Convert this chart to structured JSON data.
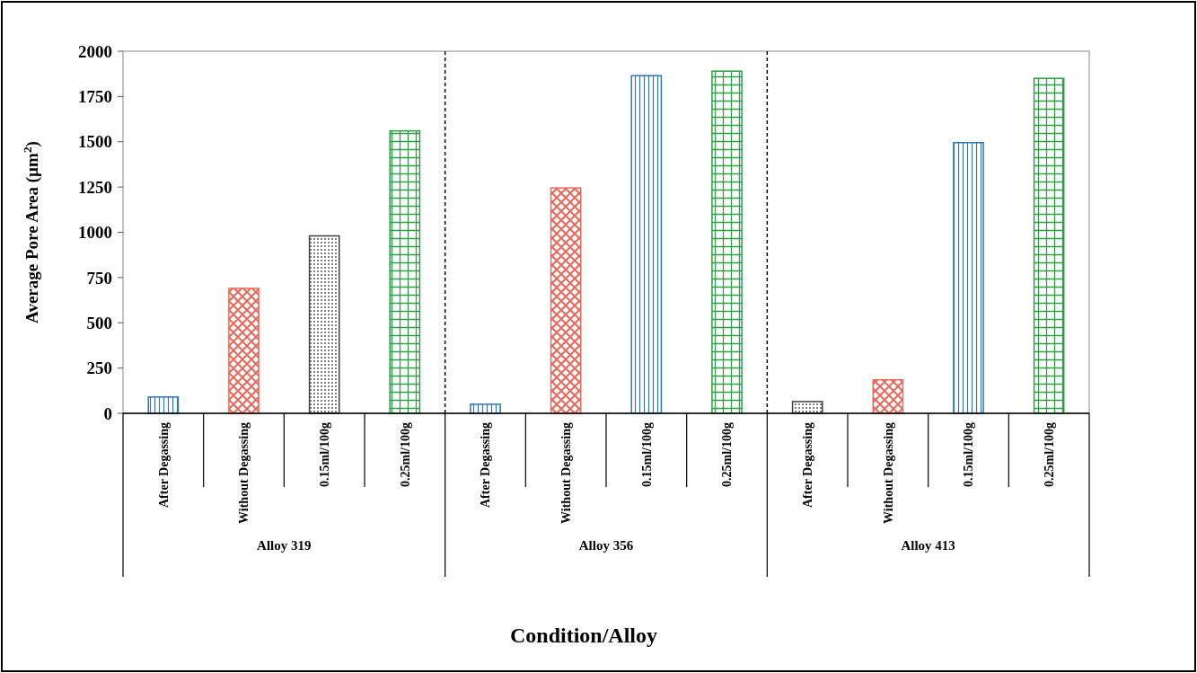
{
  "chart_data": {
    "type": "bar",
    "xlabel": "Condition/Alloy",
    "ylabel": "Average Pore Area (µm$^{2}$)",
    "categories": [
      "After Degassing",
      "Without Degassing",
      "0.15ml/100g",
      "0.25ml/100g",
      "After Degassing",
      "Without Degassing",
      "0.15ml/100g",
      "0.25ml/100g",
      "After Degassing",
      "Without Degassing",
      "0.15ml/100g",
      "0.25ml/100g"
    ],
    "values": [
      90,
      690,
      980,
      1560,
      50,
      1245,
      1865,
      1890,
      65,
      185,
      1495,
      1850
    ],
    "colors": [
      "#2e75b6",
      "#e8685a",
      "#404040",
      "#2e9e48",
      "#2e75b6",
      "#e8685a",
      "#2e75b6",
      "#2e9e48",
      "#404040",
      "#e8685a",
      "#2e75b6",
      "#2e9e48"
    ],
    "ylim": [
      0,
      2000
    ],
    "yticks": [
      0,
      250,
      500,
      750,
      1000,
      1250,
      1500,
      1750,
      2000
    ],
    "annotations": [
      "Alloy 319",
      "Alloy 356",
      "Alloy 413"
    ]
  }
}
